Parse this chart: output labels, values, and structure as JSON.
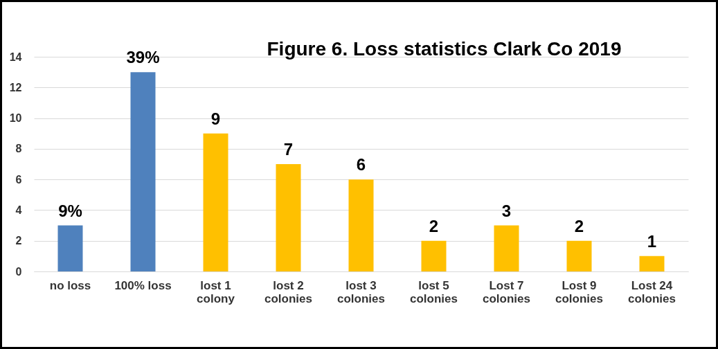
{
  "chart_data": {
    "type": "bar",
    "title": "Figure 6. Loss statistics Clark Co 2019",
    "categories": [
      "no loss",
      "100% loss",
      "lost 1 colony",
      "lost 2 colonies",
      "lost 3 colonies",
      "lost 5 colonies",
      "Lost 7 colonies",
      "Lost 9 colonies",
      "Lost 24 colonies"
    ],
    "values": [
      3,
      13,
      9,
      7,
      6,
      2,
      3,
      2,
      1
    ],
    "colors": [
      "#4f81bd",
      "#4f81bd",
      "#ffc000",
      "#ffc000",
      "#ffc000",
      "#ffc000",
      "#ffc000",
      "#ffc000",
      "#ffc000"
    ],
    "value_labels": [
      null,
      null,
      "9",
      "7",
      "6",
      "2",
      "3",
      "2",
      "1"
    ],
    "annotations": [
      {
        "text": "9%",
        "x": "no loss",
        "y": 3
      },
      {
        "text": "39%",
        "x": "100% loss",
        "y": 13
      }
    ],
    "ylim": [
      0,
      14
    ],
    "yticks": [
      0,
      2,
      4,
      6,
      8,
      10,
      12,
      14
    ],
    "grid": "y"
  }
}
